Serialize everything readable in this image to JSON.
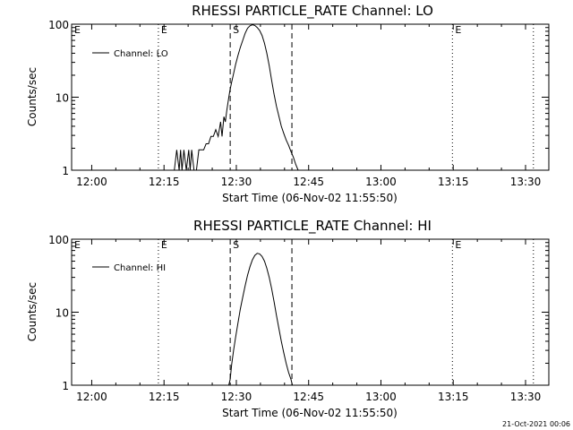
{
  "timestamp": "21-Oct-2021 00:06",
  "chart_data": [
    {
      "type": "line",
      "title": "RHESSI PARTICLE_RATE Channel: LO",
      "xlabel": "Start Time (06-Nov-02 11:55:50)",
      "ylabel": "Counts/sec",
      "x_unit": "minutes since 11:55:50",
      "xlim": [
        0,
        99
      ],
      "ylim": [
        1,
        100
      ],
      "yscale": "log",
      "x_ticks": [
        4.17,
        19.17,
        34.17,
        49.17,
        64.17,
        79.17,
        94.17
      ],
      "x_tick_labels": [
        "12:00",
        "12:15",
        "12:30",
        "12:45",
        "13:00",
        "13:15",
        "13:30"
      ],
      "y_ticks": [
        1,
        10,
        100
      ],
      "y_tick_labels": [
        "1",
        "10",
        "100"
      ],
      "legend": {
        "label": "Channel: LO",
        "placement": "top-left"
      },
      "markers": [
        {
          "x": 18.0,
          "style": "dotted",
          "label": "E"
        },
        {
          "x": 32.9,
          "style": "dashed",
          "label": "S"
        },
        {
          "x": 45.7,
          "style": "dashed",
          "label": ""
        },
        {
          "x": 79.0,
          "style": "dotted",
          "label": "E"
        },
        {
          "x": 95.8,
          "style": "dotted",
          "label": ""
        }
      ],
      "series": [
        {
          "name": "Channel: LO",
          "x": [
            21.3,
            21.8,
            22.3,
            22.6,
            22.9,
            23.3,
            23.8,
            24.3,
            24.6,
            24.9,
            25.4,
            25.9,
            26.4,
            26.9,
            27.4,
            27.9,
            28.4,
            28.9,
            29.4,
            29.9,
            30.4,
            30.9,
            31.2,
            31.6,
            31.9,
            32.2,
            32.5,
            32.8,
            33.2,
            33.6,
            34.0,
            34.5,
            35.0,
            35.5,
            36.0,
            36.5,
            37.0,
            37.5,
            38.0,
            38.5,
            39.0,
            39.5,
            40.0,
            40.5,
            41.0,
            41.5,
            42.0,
            42.5,
            43.0,
            43.5,
            44.0,
            44.5,
            45.0,
            45.5,
            46.0,
            46.5,
            47.0,
            47.3
          ],
          "y": [
            1.0,
            1.9,
            1.0,
            1.9,
            1.0,
            1.9,
            1.0,
            1.9,
            0.8,
            1.9,
            1.0,
            1.0,
            1.9,
            1.9,
            1.9,
            2.3,
            2.3,
            2.9,
            2.9,
            3.6,
            2.9,
            4.6,
            2.9,
            5.4,
            4.6,
            6.7,
            9.0,
            12,
            16,
            21,
            28,
            37,
            48,
            60,
            75,
            88,
            95,
            98,
            96,
            90,
            82,
            70,
            55,
            40,
            27,
            17,
            11,
            7.5,
            5.5,
            4.0,
            3.2,
            2.6,
            2.2,
            1.8,
            1.5,
            1.2,
            1.0,
            0.9
          ]
        }
      ]
    },
    {
      "type": "line",
      "title": "RHESSI PARTICLE_RATE Channel: HI",
      "xlabel": "Start Time (06-Nov-02 11:55:50)",
      "ylabel": "Counts/sec",
      "x_unit": "minutes since 11:55:50",
      "xlim": [
        0,
        99
      ],
      "ylim": [
        1,
        100
      ],
      "yscale": "log",
      "x_ticks": [
        4.17,
        19.17,
        34.17,
        49.17,
        64.17,
        79.17,
        94.17
      ],
      "x_tick_labels": [
        "12:00",
        "12:15",
        "12:30",
        "12:45",
        "13:00",
        "13:15",
        "13:30"
      ],
      "y_ticks": [
        1,
        10,
        100
      ],
      "y_tick_labels": [
        "1",
        "10",
        "100"
      ],
      "legend": {
        "label": "Channel: HI",
        "placement": "top-left"
      },
      "markers": [
        {
          "x": 18.0,
          "style": "dotted",
          "label": "E"
        },
        {
          "x": 32.9,
          "style": "dashed",
          "label": "S"
        },
        {
          "x": 45.7,
          "style": "dashed",
          "label": ""
        },
        {
          "x": 79.0,
          "style": "dotted",
          "label": "E"
        },
        {
          "x": 95.8,
          "style": "dotted",
          "label": ""
        }
      ],
      "series": [
        {
          "name": "Channel: HI",
          "x": [
            32.6,
            32.9,
            33.2,
            33.6,
            34.0,
            34.5,
            35.0,
            35.5,
            36.0,
            36.5,
            37.0,
            37.5,
            38.0,
            38.5,
            39.0,
            39.5,
            40.0,
            40.5,
            41.0,
            41.5,
            42.0,
            42.5,
            43.0,
            43.5,
            44.0,
            44.5,
            45.0,
            45.5,
            45.8
          ],
          "y": [
            0.9,
            1.2,
            1.9,
            3.0,
            4.5,
            7.0,
            11,
            16,
            23,
            32,
            42,
            52,
            60,
            64,
            63,
            58,
            50,
            40,
            30,
            21,
            14,
            9.0,
            6.0,
            4.0,
            2.8,
            2.0,
            1.5,
            1.2,
            0.9
          ]
        }
      ]
    }
  ]
}
